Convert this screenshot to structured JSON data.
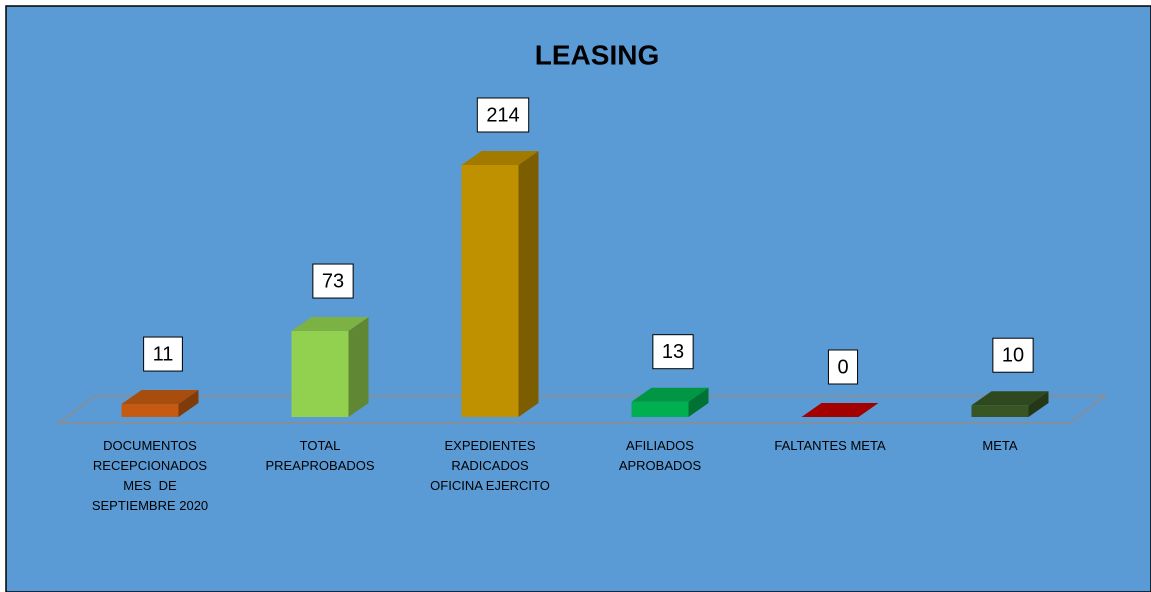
{
  "chart_data": {
    "type": "bar3d",
    "title": "LEASING",
    "categories": [
      "DOCUMENTOS\nRECEPCIONADOS\nMES  DE\nSEPTIEMBRE 2020",
      "TOTAL\nPREAPROBADOS",
      "EXPEDIENTES\nRADICADOS\nOFICINA EJERCITO",
      "AFILIADOS\nAPROBADOS",
      "FALTANTES META",
      "META"
    ],
    "values": [
      11,
      73,
      214,
      13,
      0,
      10
    ],
    "colors": [
      "#c55a11",
      "#92d050",
      "#bf9000",
      "#00b050",
      "#c00000",
      "#375623"
    ],
    "background": "#5b9bd5"
  }
}
